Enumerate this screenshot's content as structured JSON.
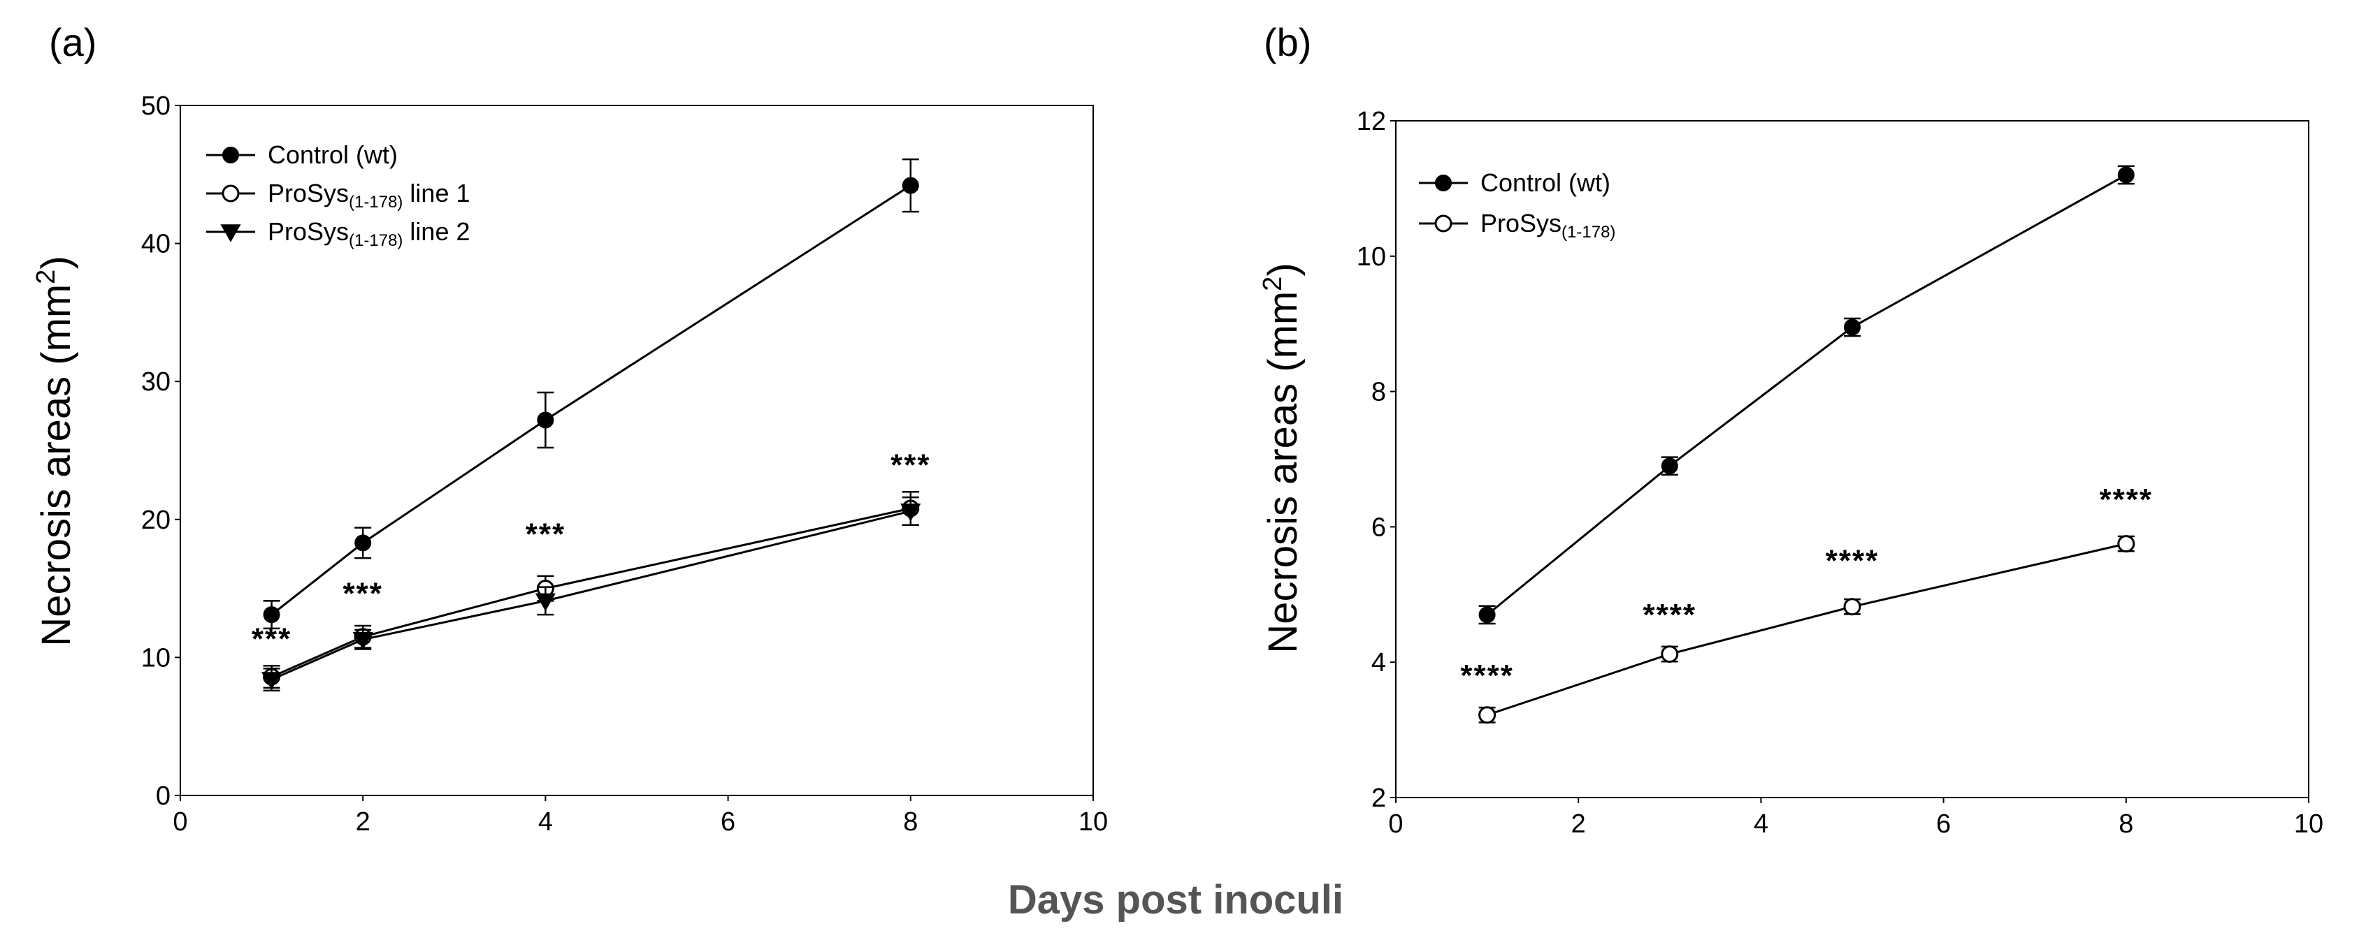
{
  "figure": {
    "shared_xlabel": "Days post inoculi"
  },
  "chart_data": [
    {
      "panel_label": "(a)",
      "type": "line",
      "title": "",
      "xlabel": "Days post inoculi",
      "ylabel": "Necrosis areas (mm",
      "ylabel_sup": "2",
      "ylabel_close": ")",
      "xlim": [
        0,
        10
      ],
      "ylim": [
        0,
        50
      ],
      "xticks": [
        0,
        2,
        4,
        6,
        8,
        10
      ],
      "yticks": [
        0,
        10,
        20,
        30,
        40,
        50
      ],
      "grid": false,
      "legend_position": "top-left",
      "series": [
        {
          "name": "Control (wt)",
          "legend_main": "Control (wt)",
          "legend_sub": "",
          "legend_tail": "",
          "marker": "filled-circle",
          "x": [
            1,
            2,
            4,
            8
          ],
          "y": [
            13.1,
            18.3,
            27.2,
            44.2
          ],
          "err": [
            1.0,
            1.1,
            2.0,
            1.9
          ]
        },
        {
          "name": "ProSys(1-178) line 1",
          "legend_main": "ProSys",
          "legend_sub": "(1-178)",
          "legend_tail": " line 1",
          "marker": "open-circle",
          "x": [
            1,
            2,
            4,
            8
          ],
          "y": [
            8.6,
            11.5,
            15.0,
            20.8
          ],
          "err": [
            0.8,
            0.8,
            0.9,
            1.2
          ]
        },
        {
          "name": "ProSys(1-178) line 2",
          "legend_main": "ProSys",
          "legend_sub": "(1-178)",
          "legend_tail": " line 2",
          "marker": "filled-triangle-down",
          "x": [
            1,
            2,
            4,
            8
          ],
          "y": [
            8.4,
            11.3,
            14.1,
            20.6
          ],
          "err": [
            0.8,
            0.7,
            1.0,
            1.0
          ]
        }
      ],
      "annotations": [
        {
          "text": "***",
          "x": 1,
          "y": 10.6
        },
        {
          "text": "***",
          "x": 2,
          "y": 13.9
        },
        {
          "text": "***",
          "x": 4,
          "y": 18.2
        },
        {
          "text": "***",
          "x": 8,
          "y": 23.2
        }
      ]
    },
    {
      "panel_label": "(b)",
      "type": "line",
      "title": "",
      "xlabel": "Days post inoculi",
      "ylabel": "Necrosis areas (mm",
      "ylabel_sup": "2",
      "ylabel_close": ")",
      "xlim": [
        0,
        10
      ],
      "ylim": [
        2,
        12
      ],
      "xticks": [
        0,
        2,
        4,
        6,
        8,
        10
      ],
      "yticks": [
        2,
        4,
        6,
        8,
        10,
        12
      ],
      "grid": false,
      "legend_position": "top-left",
      "series": [
        {
          "name": "Control (wt)",
          "legend_main": "Control (wt)",
          "legend_sub": "",
          "legend_tail": "",
          "marker": "filled-circle",
          "x": [
            1,
            3,
            5,
            8
          ],
          "y": [
            4.7,
            6.9,
            8.95,
            11.2
          ],
          "err": [
            0.13,
            0.13,
            0.13,
            0.13
          ]
        },
        {
          "name": "ProSys(1-178)",
          "legend_main": "ProSys",
          "legend_sub": "(1-178)",
          "legend_tail": "",
          "marker": "open-circle",
          "x": [
            1,
            3,
            5,
            8
          ],
          "y": [
            3.22,
            4.12,
            4.82,
            5.75
          ],
          "err": [
            0.11,
            0.11,
            0.11,
            0.11
          ]
        }
      ],
      "annotations": [
        {
          "text": "****",
          "x": 1,
          "y": 3.65
        },
        {
          "text": "****",
          "x": 3,
          "y": 4.55
        },
        {
          "text": "****",
          "x": 5,
          "y": 5.35
        },
        {
          "text": "****",
          "x": 8,
          "y": 6.25
        }
      ]
    }
  ]
}
